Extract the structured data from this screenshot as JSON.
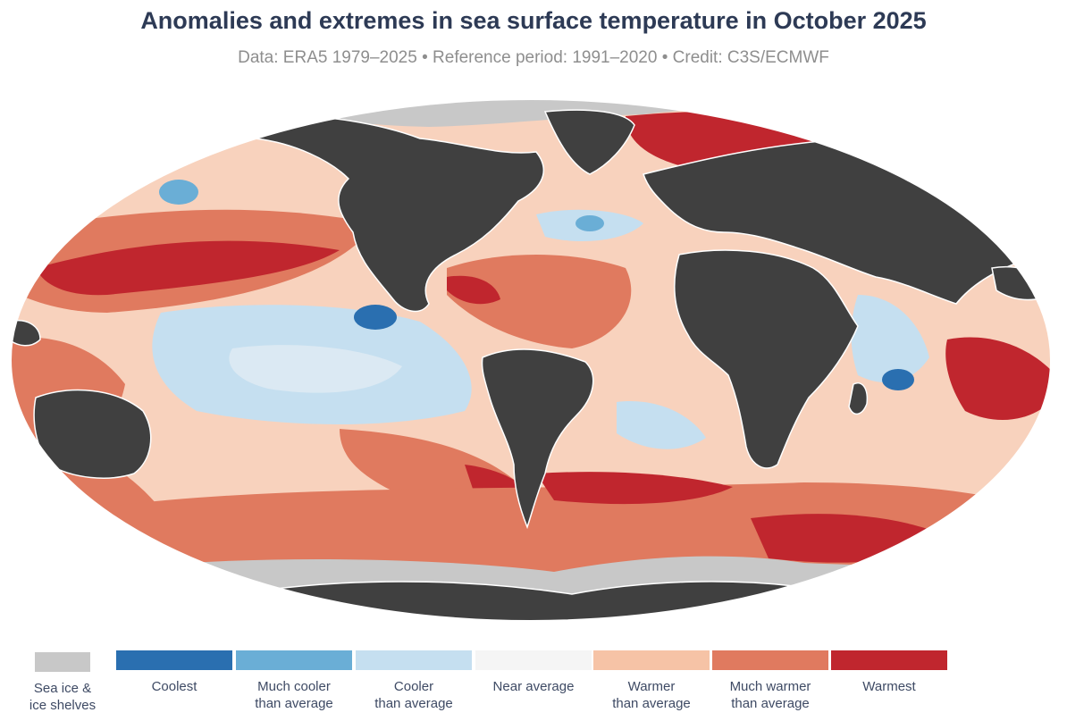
{
  "title": "Anomalies and extremes in sea surface temperature in October 2025",
  "subtitle": "Data: ERA5 1979–2025 • Reference period: 1991–2020 • Credit: C3S/ECMWF",
  "colors": {
    "land": "#404040",
    "sea_ice": "#c8c8c8",
    "coolest": "#2a6fb0",
    "much_cooler": "#6aaed6",
    "cooler": "#c5dff0",
    "near_average": "#f5f5f5",
    "warmer": "#f6c3a6",
    "much_warmer": "#e07a5f",
    "warmest": "#c0262e"
  },
  "legend": {
    "sea_ice": "Sea ice &\nice shelves",
    "categories": [
      {
        "label": "Coolest",
        "color": "#2a6fb0"
      },
      {
        "label": "Much cooler\nthan average",
        "color": "#6aaed6"
      },
      {
        "label": "Cooler\nthan average",
        "color": "#c5dff0"
      },
      {
        "label": "Near average",
        "color": "#f5f5f5"
      },
      {
        "label": "Warmer\nthan average",
        "color": "#f6c3a6"
      },
      {
        "label": "Much warmer\nthan average",
        "color": "#e07a5f"
      },
      {
        "label": "Warmest",
        "color": "#c0262e"
      }
    ]
  }
}
